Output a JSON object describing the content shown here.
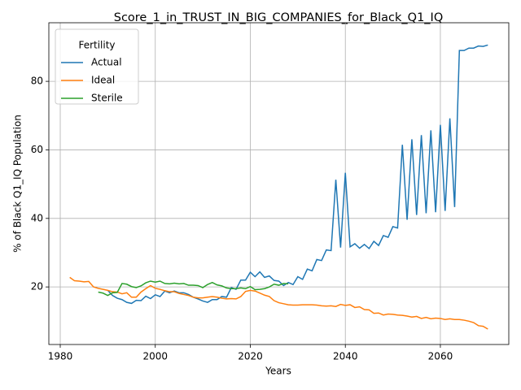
{
  "chart_data": {
    "type": "line",
    "title": "Score_1_in_TRUST_IN_BIG_COMPANIES_for_Black_Q1_IQ",
    "x_label": "Years",
    "y_label": "% of Black Q1_IQ Population",
    "legend_title": "Fertility",
    "legend_position": "upper left",
    "grid": true,
    "xlim": [
      1977.6,
      2074.4
    ],
    "ylim": [
      3.2,
      97.1
    ],
    "xticks": [
      1980,
      2000,
      2020,
      2040,
      2060
    ],
    "yticks": [
      20,
      40,
      60,
      80
    ],
    "x": [
      1982,
      1983,
      1984,
      1985,
      1986,
      1987,
      1988,
      1989,
      1990,
      1991,
      1992,
      1993,
      1994,
      1995,
      1996,
      1997,
      1998,
      1999,
      2000,
      2001,
      2002,
      2003,
      2004,
      2005,
      2006,
      2007,
      2008,
      2009,
      2010,
      2011,
      2012,
      2013,
      2014,
      2015,
      2016,
      2017,
      2018,
      2019,
      2020,
      2021,
      2022,
      2023,
      2024,
      2025,
      2026,
      2027,
      2028,
      2029,
      2030,
      2031,
      2032,
      2033,
      2034,
      2035,
      2036,
      2037,
      2038,
      2039,
      2040,
      2041,
      2042,
      2043,
      2044,
      2045,
      2046,
      2047,
      2048,
      2049,
      2050,
      2051,
      2052,
      2053,
      2054,
      2055,
      2056,
      2057,
      2058,
      2059,
      2060,
      2061,
      2062,
      2063,
      2064,
      2065,
      2066,
      2067,
      2068,
      2069,
      2070
    ],
    "series": [
      {
        "name": "Actual",
        "color": "#1f77b4",
        "values": [
          null,
          null,
          null,
          null,
          null,
          null,
          null,
          null,
          19,
          17.5,
          16.7,
          16.3,
          15.5,
          15.2,
          16.1,
          16,
          17.3,
          16.6,
          17.7,
          17.2,
          18.8,
          18.3,
          18.8,
          18.3,
          18.3,
          17.8,
          17,
          16.5,
          15.9,
          15.5,
          16.3,
          16.3,
          17.2,
          17,
          19.8,
          19.3,
          22,
          22,
          24.3,
          23,
          24.4,
          22.8,
          23.2,
          21.9,
          21.7,
          20.4,
          21.3,
          20.7,
          23,
          22.2,
          25.2,
          24.7,
          28,
          27.7,
          30.8,
          30.6,
          51.3,
          31.5,
          53.3,
          31.7,
          32.6,
          31.3,
          32.4,
          31.2,
          33.3,
          32.1,
          35,
          34.5,
          37.6,
          37.2,
          61.5,
          39.6,
          63.1,
          41,
          64.3,
          41.5,
          65.7,
          41.8,
          67.3,
          42.2,
          69.2,
          43.3,
          89,
          89,
          89.7,
          89.7,
          90.3,
          90.2,
          90.6
        ]
      },
      {
        "name": "Ideal",
        "color": "#ff7f0e",
        "values": [
          22.8,
          21.8,
          21.7,
          21.5,
          21.6,
          20,
          19.6,
          19.3,
          19,
          18.6,
          18.5,
          18,
          18.3,
          17,
          17,
          18.5,
          19.5,
          20.4,
          19.6,
          19.3,
          18.9,
          18.6,
          18.6,
          18.1,
          17.8,
          17.5,
          17,
          16.8,
          16.8,
          17,
          17.2,
          17,
          16.7,
          16.5,
          16.6,
          16.5,
          17.2,
          18.7,
          19,
          18.8,
          18.2,
          17.6,
          17.2,
          16,
          15.4,
          15.1,
          14.8,
          14.7,
          14.7,
          14.8,
          14.8,
          14.8,
          14.7,
          14.5,
          14.4,
          14.5,
          14.3,
          14.9,
          14.6,
          14.8,
          14,
          14.2,
          13.4,
          13.3,
          12.3,
          12.4,
          11.8,
          12.1,
          12,
          11.8,
          11.7,
          11.5,
          11.2,
          11.4,
          10.8,
          11.1,
          10.7,
          10.9,
          10.8,
          10.5,
          10.7,
          10.5,
          10.5,
          10.3,
          10,
          9.6,
          8.7,
          8.5,
          7.7
        ]
      },
      {
        "name": "Sterile",
        "color": "#2ca02c",
        "values": [
          null,
          null,
          null,
          null,
          null,
          null,
          18.5,
          18.2,
          17.5,
          18.3,
          18.4,
          21,
          20.8,
          20.1,
          19.8,
          20.3,
          21.2,
          21.7,
          21.4,
          21.7,
          21,
          20.9,
          21.1,
          20.9,
          21,
          20.5,
          20.5,
          20.4,
          19.8,
          20.7,
          21.3,
          20.6,
          20.3,
          19.7,
          19.5,
          19.5,
          19.7,
          19.5,
          20.1,
          19.2,
          19.3,
          19.5,
          20,
          20.8,
          20.5,
          21,
          20.9,
          null,
          null,
          null,
          null,
          null,
          null,
          null,
          null,
          null,
          null,
          null,
          null,
          null,
          null,
          null,
          null,
          null,
          null,
          null,
          null,
          null,
          null,
          null,
          null,
          null,
          null,
          null,
          null,
          null,
          null,
          null,
          null,
          null,
          null,
          null,
          null,
          null,
          null,
          null,
          null,
          null,
          null
        ]
      }
    ]
  }
}
